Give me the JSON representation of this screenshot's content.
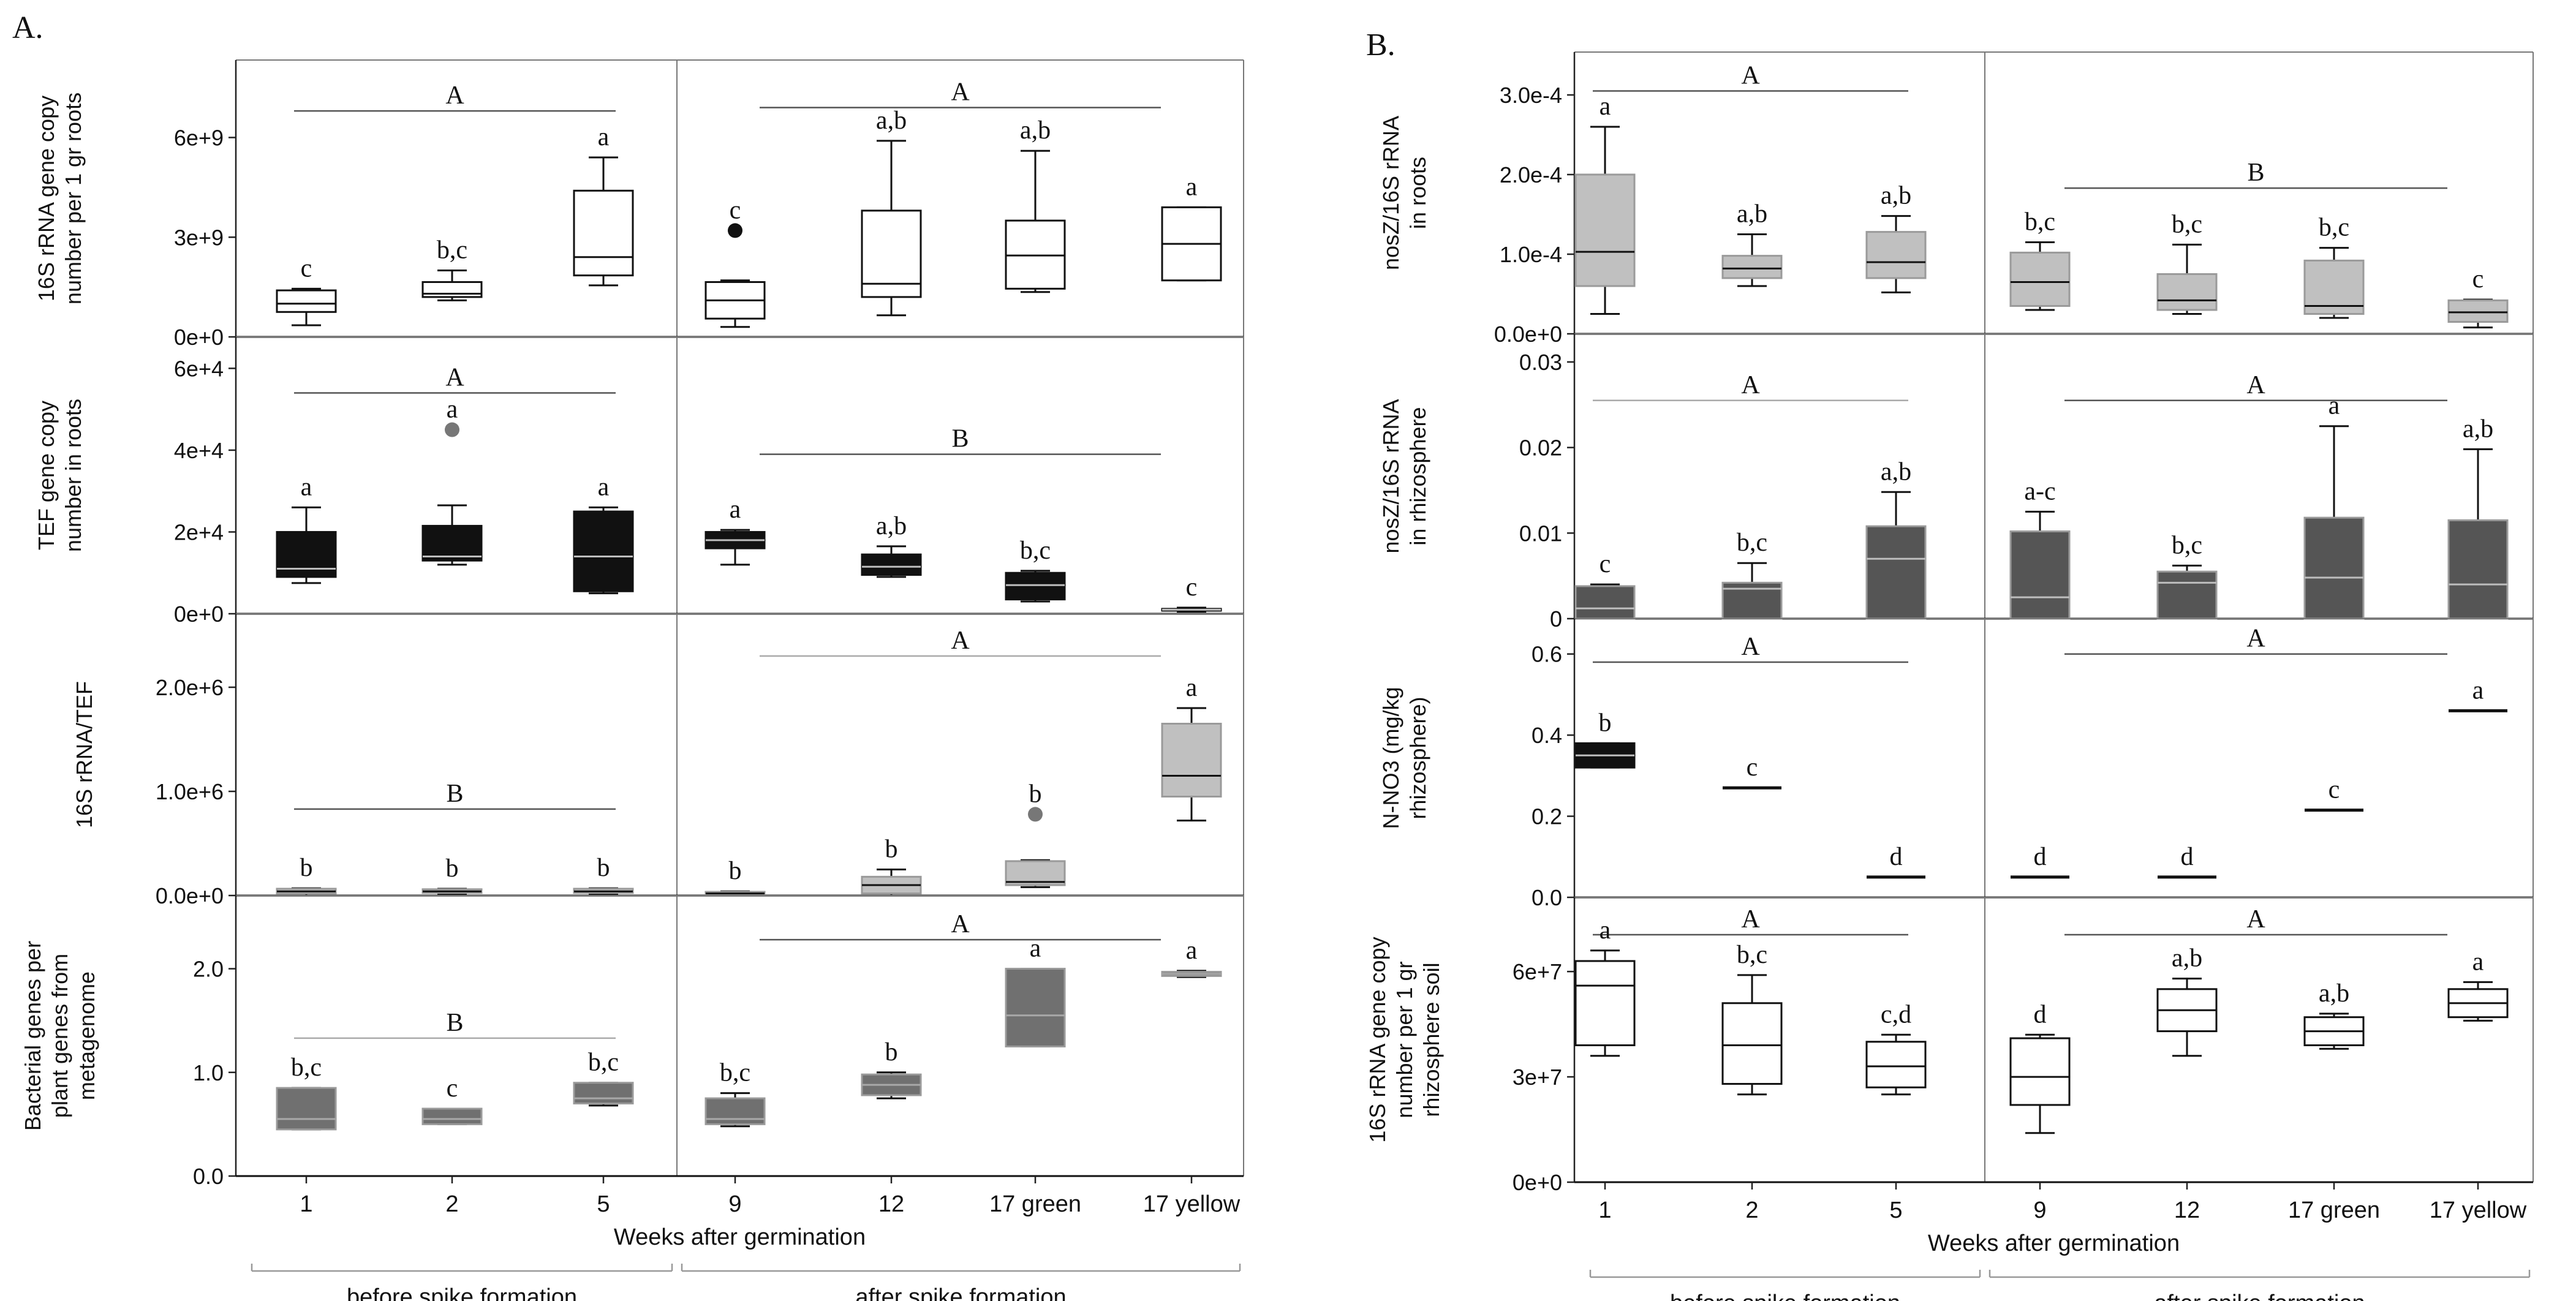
{
  "figure": {
    "panel_a_label": "A.",
    "panel_b_label": "B.",
    "x_axis_title": "Weeks after germination",
    "before_label": "before spike formation",
    "after_label": "after spike formation",
    "categories": [
      "1",
      "2",
      "5",
      "9",
      "12",
      "17 green",
      "17 yellow"
    ]
  },
  "chart_data": [
    {
      "id": "A1",
      "type": "box",
      "ylabel": [
        "16S rRNA gene copy",
        "number per 1 gr roots"
      ],
      "ylim": [
        0,
        8000000000
      ],
      "ticks": [
        0,
        3000000000,
        6000000000
      ],
      "tick_labels": [
        "0e+0",
        "3e+9",
        "6e+9"
      ],
      "fill": "#ffffff",
      "groups": [
        {
          "letter": "A",
          "value": 6800000000
        },
        {
          "letter": "A",
          "value": 6900000000
        }
      ],
      "boxes": [
        {
          "cat": "1",
          "min": 350000000,
          "q1": 750000000,
          "median": 1000000000,
          "q3": 1400000000,
          "max": 1450000000,
          "letter": "c"
        },
        {
          "cat": "2",
          "min": 1100000000,
          "q1": 1200000000,
          "median": 1300000000,
          "q3": 1650000000,
          "max": 2000000000,
          "letter": "b,c"
        },
        {
          "cat": "5",
          "min": 1550000000,
          "q1": 1850000000,
          "median": 2400000000,
          "q3": 4400000000,
          "max": 5400000000,
          "letter": "a"
        },
        {
          "cat": "9",
          "min": 300000000,
          "q1": 550000000,
          "median": 1100000000,
          "q3": 1650000000,
          "max": 1700000000,
          "outlier": 3200000000,
          "letter": "c"
        },
        {
          "cat": "12",
          "min": 650000000,
          "q1": 1200000000,
          "median": 1600000000,
          "q3": 3800000000,
          "max": 5900000000,
          "letter": "a,b"
        },
        {
          "cat": "17 green",
          "min": 1350000000,
          "q1": 1450000000,
          "median": 2450000000,
          "q3": 3500000000,
          "max": 5600000000,
          "letter": "a,b"
        },
        {
          "cat": "17 yellow",
          "min": 1700000000,
          "q1": 1700000000,
          "median": 2800000000,
          "q3": 3900000000,
          "max": 3900000000,
          "letter": "a"
        }
      ]
    },
    {
      "id": "A2",
      "type": "box",
      "ylabel": [
        "TEF gene copy",
        "number in roots"
      ],
      "ylim": [
        0,
        65000
      ],
      "ticks": [
        0,
        20000,
        40000,
        60000
      ],
      "tick_labels": [
        "0e+0",
        "2e+4",
        "4e+4",
        "6e+4"
      ],
      "fill": "#111111",
      "groups": [
        {
          "letter": "A",
          "value": 54000
        },
        {
          "letter": "B",
          "value": 39000
        }
      ],
      "boxes": [
        {
          "cat": "1",
          "min": 7500,
          "q1": 9000,
          "median": 11000,
          "q3": 20000,
          "max": 26000,
          "letter": "a"
        },
        {
          "cat": "2",
          "min": 12000,
          "q1": 13000,
          "median": 14000,
          "q3": 21500,
          "max": 26500,
          "outlier": 45000,
          "letter": "a"
        },
        {
          "cat": "5",
          "min": 5000,
          "q1": 5500,
          "median": 14000,
          "q3": 25000,
          "max": 26000,
          "letter": "a"
        },
        {
          "cat": "9",
          "min": 12000,
          "q1": 16000,
          "median": 18000,
          "q3": 20000,
          "max": 20500,
          "letter": "a"
        },
        {
          "cat": "12",
          "min": 9000,
          "q1": 9500,
          "median": 11500,
          "q3": 14500,
          "max": 16500,
          "letter": "a,b"
        },
        {
          "cat": "17 green",
          "min": 3000,
          "q1": 3500,
          "median": 7000,
          "q3": 10000,
          "max": 10500,
          "letter": "b,c"
        },
        {
          "cat": "17 yellow",
          "min": 500,
          "q1": 800,
          "median": 1000,
          "q3": 1200,
          "max": 1500,
          "letter": "c"
        }
      ]
    },
    {
      "id": "A3",
      "type": "box",
      "ylabel": [
        "16S rRNA/TEF"
      ],
      "ylim": [
        0,
        2600000
      ],
      "ticks": [
        0,
        1000000,
        2000000
      ],
      "tick_labels": [
        "0.0e+0",
        "1.0e+6",
        "2.0e+6"
      ],
      "fill": "#c0c0c0",
      "groups": [
        {
          "letter": "B",
          "value": 830000
        },
        {
          "letter": "A",
          "value": 2300000
        }
      ],
      "boxes": [
        {
          "cat": "1",
          "min": 0,
          "q1": 20000,
          "median": 40000,
          "q3": 65000,
          "max": 70000,
          "letter": "b"
        },
        {
          "cat": "2",
          "min": 10000,
          "q1": 25000,
          "median": 40000,
          "q3": 60000,
          "max": 65000,
          "letter": "b"
        },
        {
          "cat": "5",
          "min": 10000,
          "q1": 25000,
          "median": 40000,
          "q3": 65000,
          "max": 70000,
          "letter": "b"
        },
        {
          "cat": "9",
          "min": 0,
          "q1": 10000,
          "median": 20000,
          "q3": 35000,
          "max": 40000,
          "letter": "b"
        },
        {
          "cat": "12",
          "min": 0,
          "q1": 20000,
          "median": 100000,
          "q3": 180000,
          "max": 250000,
          "letter": "b"
        },
        {
          "cat": "17 green",
          "min": 80000,
          "q1": 100000,
          "median": 130000,
          "q3": 330000,
          "max": 340000,
          "outlier": 780000,
          "letter": "b"
        },
        {
          "cat": "17 yellow",
          "min": 720000,
          "q1": 950000,
          "median": 1150000,
          "q3": 1650000,
          "max": 1800000,
          "letter": "a"
        }
      ]
    },
    {
      "id": "A4",
      "type": "box",
      "ylabel": [
        "Bacterial genes per",
        "plant genes from",
        "metagenome"
      ],
      "ylim": [
        0,
        2.6
      ],
      "ticks": [
        0,
        1,
        2
      ],
      "tick_labels": [
        "0.0",
        "1.0",
        "2.0"
      ],
      "fill": "#707070",
      "groups": [
        {
          "letter": "B",
          "value": 1.33
        },
        {
          "letter": "A",
          "value": 2.28
        }
      ],
      "boxes": [
        {
          "cat": "1",
          "min": 0.45,
          "q1": 0.45,
          "median": 0.55,
          "q3": 0.85,
          "max": 0.85,
          "letter": "b,c"
        },
        {
          "cat": "2",
          "min": 0.5,
          "q1": 0.5,
          "median": 0.55,
          "q3": 0.65,
          "max": 0.65,
          "letter": "c"
        },
        {
          "cat": "5",
          "min": 0.68,
          "q1": 0.7,
          "median": 0.75,
          "q3": 0.9,
          "max": 0.9,
          "letter": "b,c"
        },
        {
          "cat": "9",
          "min": 0.48,
          "q1": 0.5,
          "median": 0.55,
          "q3": 0.75,
          "max": 0.8,
          "letter": "b,c"
        },
        {
          "cat": "12",
          "min": 0.75,
          "q1": 0.78,
          "median": 0.88,
          "q3": 0.98,
          "max": 1.0,
          "letter": "b"
        },
        {
          "cat": "17 green",
          "min": 1.25,
          "q1": 1.25,
          "median": 1.55,
          "q3": 2.0,
          "max": 2.0,
          "letter": "a"
        },
        {
          "cat": "17 yellow",
          "min": 1.92,
          "q1": 1.93,
          "median": 1.95,
          "q3": 1.97,
          "max": 1.98,
          "letter": "a"
        }
      ]
    },
    {
      "id": "B1",
      "type": "box",
      "ylabel": [
        "nosZ/16S rRNA",
        "in roots"
      ],
      "ylim": [
        0,
        0.00034
      ],
      "ticks": [
        0,
        0.0001,
        0.0002,
        0.0003
      ],
      "tick_labels": [
        "0.0e+0",
        "1.0e-4",
        "2.0e-4",
        "3.0e-4"
      ],
      "fill": "#c0c0c0",
      "groups": [
        {
          "letter": "A",
          "value": 0.000305
        },
        {
          "letter": "B",
          "value": 0.000183
        }
      ],
      "boxes": [
        {
          "cat": "1",
          "min": 2.5e-05,
          "q1": 6e-05,
          "median": 0.000103,
          "q3": 0.0002,
          "max": 0.00026,
          "letter": "a"
        },
        {
          "cat": "2",
          "min": 6e-05,
          "q1": 7e-05,
          "median": 8.2e-05,
          "q3": 9.8e-05,
          "max": 0.000125,
          "letter": "a,b"
        },
        {
          "cat": "5",
          "min": 5.2e-05,
          "q1": 7e-05,
          "median": 9e-05,
          "q3": 0.000128,
          "max": 0.000148,
          "letter": "a,b"
        },
        {
          "cat": "9",
          "min": 3e-05,
          "q1": 3.5e-05,
          "median": 6.5e-05,
          "q3": 0.000102,
          "max": 0.000115,
          "letter": "b,c"
        },
        {
          "cat": "12",
          "min": 2.5e-05,
          "q1": 3e-05,
          "median": 4.2e-05,
          "q3": 7.5e-05,
          "max": 0.000112,
          "letter": "b,c"
        },
        {
          "cat": "17 green",
          "min": 2e-05,
          "q1": 2.5e-05,
          "median": 3.5e-05,
          "q3": 9.2e-05,
          "max": 0.000108,
          "letter": "b,c"
        },
        {
          "cat": "17 yellow",
          "min": 8e-06,
          "q1": 1.5e-05,
          "median": 2.7e-05,
          "q3": 4.2e-05,
          "max": 4.3e-05,
          "letter": "c"
        }
      ]
    },
    {
      "id": "B2",
      "type": "box",
      "ylabel": [
        "nosZ/16S rRNA",
        "in rhizosphere"
      ],
      "ylim": [
        0,
        0.032
      ],
      "ticks": [
        0,
        0.01,
        0.02,
        0.03
      ],
      "tick_labels": [
        "0",
        "0.01",
        "0.02",
        "0.03"
      ],
      "fill": "#555555",
      "groups": [
        {
          "letter": "A",
          "value": 0.0255
        },
        {
          "letter": "A",
          "value": 0.0255
        }
      ],
      "boxes": [
        {
          "cat": "1",
          "min": 0,
          "q1": 0,
          "median": 0.0012,
          "q3": 0.0038,
          "max": 0.004,
          "letter": "c"
        },
        {
          "cat": "2",
          "min": 0,
          "q1": 0,
          "median": 0.0035,
          "q3": 0.0042,
          "max": 0.0065,
          "letter": "b,c"
        },
        {
          "cat": "5",
          "min": 0,
          "q1": 0,
          "median": 0.007,
          "q3": 0.0108,
          "max": 0.0148,
          "letter": "a,b"
        },
        {
          "cat": "9",
          "min": 0,
          "q1": 0,
          "median": 0.0025,
          "q3": 0.0102,
          "max": 0.0125,
          "letter": "a-c"
        },
        {
          "cat": "12",
          "min": 0,
          "q1": 0,
          "median": 0.0042,
          "q3": 0.0055,
          "max": 0.0062,
          "letter": "b,c"
        },
        {
          "cat": "17 green",
          "min": 0,
          "q1": 0,
          "median": 0.0048,
          "q3": 0.0118,
          "max": 0.0225,
          "letter": "a"
        },
        {
          "cat": "17 yellow",
          "min": 0,
          "q1": 0,
          "median": 0.004,
          "q3": 0.0115,
          "max": 0.0198,
          "letter": "a,b"
        }
      ]
    },
    {
      "id": "B3",
      "type": "box",
      "ylabel": [
        "N-NO3 (mg/kg",
        "rhizosphere)"
      ],
      "ylim": [
        0,
        0.66
      ],
      "ticks": [
        0,
        0.2,
        0.4,
        0.6
      ],
      "tick_labels": [
        "0.0",
        "0.2",
        "0.4",
        "0.6"
      ],
      "fill": "#111111",
      "groups": [
        {
          "letter": "A",
          "value": 0.58
        },
        {
          "letter": "A",
          "value": 0.6
        }
      ],
      "boxes": [
        {
          "cat": "1",
          "min": 0.32,
          "q1": 0.32,
          "median": 0.35,
          "q3": 0.38,
          "max": 0.38,
          "letter": "b"
        },
        {
          "cat": "2",
          "min": 0.27,
          "q1": 0.27,
          "median": 0.27,
          "q3": 0.27,
          "max": 0.27,
          "letter": "c"
        },
        {
          "cat": "5",
          "min": 0.05,
          "q1": 0.05,
          "median": 0.05,
          "q3": 0.05,
          "max": 0.05,
          "letter": "d"
        },
        {
          "cat": "9",
          "min": 0.05,
          "q1": 0.05,
          "median": 0.05,
          "q3": 0.05,
          "max": 0.05,
          "letter": "d"
        },
        {
          "cat": "12",
          "min": 0.05,
          "q1": 0.05,
          "median": 0.05,
          "q3": 0.05,
          "max": 0.05,
          "letter": "d"
        },
        {
          "cat": "17 green",
          "min": 0.215,
          "q1": 0.215,
          "median": 0.215,
          "q3": 0.215,
          "max": 0.215,
          "letter": "c"
        },
        {
          "cat": "17 yellow",
          "min": 0.46,
          "q1": 0.46,
          "median": 0.46,
          "q3": 0.46,
          "max": 0.46,
          "letter": "a"
        }
      ]
    },
    {
      "id": "B4",
      "type": "box",
      "ylabel": [
        "16S rRNA gene copy",
        "number per 1 gr",
        "rhizosphere soil"
      ],
      "ylim": [
        0,
        78000000
      ],
      "ticks": [
        0,
        30000000,
        60000000
      ],
      "tick_labels": [
        "0e+0",
        "3e+7",
        "6e+7"
      ],
      "fill": "#ffffff",
      "groups": [
        {
          "letter": "A",
          "value": 70500000
        },
        {
          "letter": "A",
          "value": 70500000
        }
      ],
      "boxes": [
        {
          "cat": "1",
          "min": 36000000,
          "q1": 39000000,
          "median": 56000000,
          "q3": 63000000,
          "max": 66000000,
          "letter": "a"
        },
        {
          "cat": "2",
          "min": 25000000,
          "q1": 28000000,
          "median": 39000000,
          "q3": 51000000,
          "max": 59000000,
          "letter": "b,c"
        },
        {
          "cat": "5",
          "min": 25000000,
          "q1": 27000000,
          "median": 33000000,
          "q3": 40000000,
          "max": 42000000,
          "letter": "c,d"
        },
        {
          "cat": "9",
          "min": 14000000,
          "q1": 22000000,
          "median": 30000000,
          "q3": 41000000,
          "max": 42000000,
          "letter": "d"
        },
        {
          "cat": "12",
          "min": 36000000,
          "q1": 43000000,
          "median": 49000000,
          "q3": 55000000,
          "max": 58000000,
          "letter": "a,b"
        },
        {
          "cat": "17 green",
          "min": 38000000,
          "q1": 39000000,
          "median": 43000000,
          "q3": 47000000,
          "max": 48000000,
          "letter": "a,b"
        },
        {
          "cat": "17 yellow",
          "min": 46000000,
          "q1": 47000000,
          "median": 51000000,
          "q3": 55000000,
          "max": 57000000,
          "letter": "a"
        }
      ]
    }
  ]
}
